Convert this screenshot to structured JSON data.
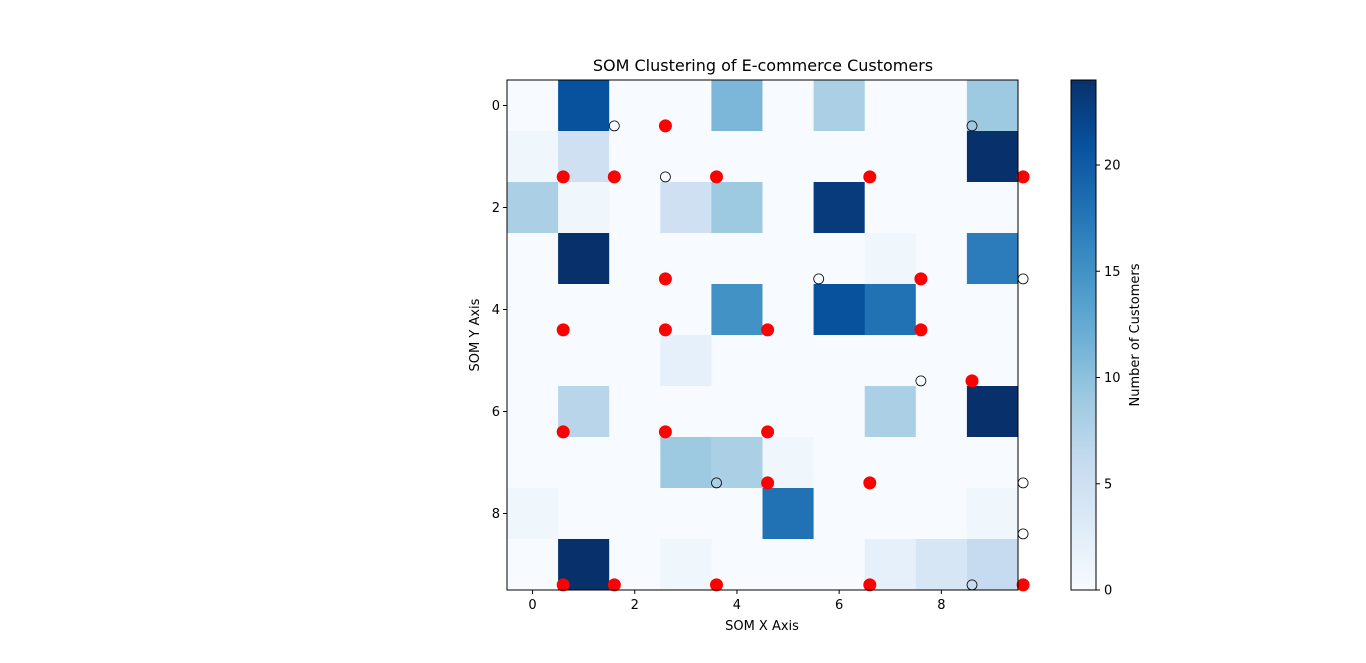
{
  "chart_data": {
    "type": "heatmap",
    "title": "SOM Clustering of E-commerce Customers",
    "xlabel": "SOM X Axis",
    "ylabel": "SOM Y Axis",
    "xlim": [
      -0.5,
      9.5
    ],
    "ylim": [
      9.5,
      -0.5
    ],
    "x_ticks": [
      0,
      2,
      4,
      6,
      8
    ],
    "y_ticks": [
      0,
      2,
      4,
      6,
      8
    ],
    "grid": false,
    "colormap": "Blues",
    "colorbar": {
      "label": "Number of Customers",
      "range": [
        0,
        24
      ],
      "ticks": [
        0,
        5,
        10,
        15,
        20
      ]
    },
    "cells": [
      [
        0,
        21,
        0,
        0,
        11,
        0,
        8,
        0,
        0,
        9
      ],
      [
        1,
        5,
        0,
        0,
        0,
        0,
        0,
        0,
        0,
        24
      ],
      [
        8,
        1,
        0,
        5,
        9,
        0,
        23,
        0,
        0,
        0
      ],
      [
        0,
        24,
        0,
        0,
        0,
        0,
        0,
        1,
        0,
        17
      ],
      [
        0,
        0,
        0,
        0,
        15,
        0,
        21,
        18,
        0,
        0
      ],
      [
        0,
        0,
        0,
        2,
        0,
        0,
        0,
        0,
        0,
        0
      ],
      [
        0,
        7,
        0,
        0,
        0,
        0,
        0,
        8,
        0,
        24
      ],
      [
        0,
        0,
        0,
        9,
        8,
        1,
        0,
        0,
        0,
        0
      ],
      [
        1,
        0,
        0,
        0,
        0,
        18,
        0,
        0,
        0,
        1
      ],
      [
        0,
        24,
        0,
        1,
        0,
        0,
        0,
        2,
        4,
        6
      ]
    ],
    "markers": {
      "red_filled": [
        [
          2.6,
          0.4
        ],
        [
          0.6,
          1.4
        ],
        [
          1.6,
          1.4
        ],
        [
          3.6,
          1.4
        ],
        [
          6.6,
          1.4
        ],
        [
          9.6,
          1.4
        ],
        [
          2.6,
          3.4
        ],
        [
          7.6,
          3.4
        ],
        [
          0.6,
          4.4
        ],
        [
          2.6,
          4.4
        ],
        [
          4.6,
          4.4
        ],
        [
          7.6,
          4.4
        ],
        [
          8.6,
          5.4
        ],
        [
          0.6,
          6.4
        ],
        [
          2.6,
          6.4
        ],
        [
          4.6,
          6.4
        ],
        [
          4.6,
          7.4
        ],
        [
          6.6,
          7.4
        ],
        [
          0.6,
          9.4
        ],
        [
          1.6,
          9.4
        ],
        [
          3.6,
          9.4
        ],
        [
          6.6,
          9.4
        ],
        [
          9.6,
          9.4
        ]
      ],
      "hollow": [
        [
          1.6,
          0.4
        ],
        [
          8.6,
          0.4
        ],
        [
          2.6,
          1.4
        ],
        [
          5.6,
          3.4
        ],
        [
          9.6,
          3.4
        ],
        [
          7.6,
          5.4
        ],
        [
          3.6,
          7.4
        ],
        [
          9.6,
          7.4
        ],
        [
          9.6,
          8.4
        ],
        [
          8.6,
          9.4
        ]
      ]
    },
    "colors": {
      "red_marker": "#ff0000",
      "hollow_edge": "#000000"
    }
  }
}
